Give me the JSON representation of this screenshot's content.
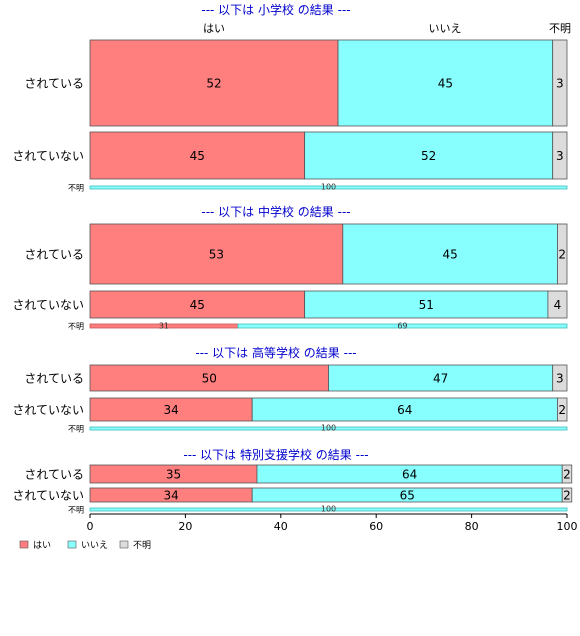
{
  "chart_data": {
    "type": "bar",
    "orientation": "horizontal",
    "stacked": "percent",
    "header_labels": [
      "はい",
      "いいえ",
      "不明"
    ],
    "series_names": [
      "はい",
      "いいえ",
      "不明"
    ],
    "colors": [
      "#ff7f7f",
      "#88ffff",
      "#dcdcdc"
    ],
    "xlim": [
      0,
      100
    ],
    "xticks": [
      "0",
      "20",
      "40",
      "60",
      "80",
      "100"
    ],
    "legend": {
      "position": "bottom-left",
      "items": [
        {
          "label": "はい",
          "color": "#ff7f7f"
        },
        {
          "label": "いいえ",
          "color": "#88ffff"
        },
        {
          "label": "不明",
          "color": "#dcdcdc"
        }
      ]
    },
    "panels": [
      {
        "title": "--- 以下は 小学校 の結果 ---",
        "rows": [
          {
            "label": "されている",
            "values": [
              52,
              45,
              3
            ]
          },
          {
            "label": "されていない",
            "values": [
              45,
              52,
              3
            ]
          },
          {
            "label": "不明",
            "values": [
              0,
              100,
              0
            ]
          }
        ]
      },
      {
        "title": "--- 以下は 中学校 の結果 ---",
        "rows": [
          {
            "label": "されている",
            "values": [
              53,
              45,
              2
            ]
          },
          {
            "label": "されていない",
            "values": [
              45,
              51,
              4
            ]
          },
          {
            "label": "不明",
            "values": [
              31,
              69,
              0
            ]
          }
        ]
      },
      {
        "title": "--- 以下は 高等学校 の結果 ---",
        "rows": [
          {
            "label": "されている",
            "values": [
              50,
              47,
              3
            ]
          },
          {
            "label": "されていない",
            "values": [
              34,
              64,
              2
            ]
          },
          {
            "label": "不明",
            "values": [
              0,
              100,
              0
            ]
          }
        ]
      },
      {
        "title": "--- 以下は 特別支援学校 の結果 ---",
        "rows": [
          {
            "label": "されている",
            "values": [
              35,
              64,
              2
            ]
          },
          {
            "label": "されていない",
            "values": [
              34,
              65,
              2
            ]
          },
          {
            "label": "不明",
            "values": [
              0,
              100,
              0
            ]
          }
        ]
      }
    ]
  }
}
